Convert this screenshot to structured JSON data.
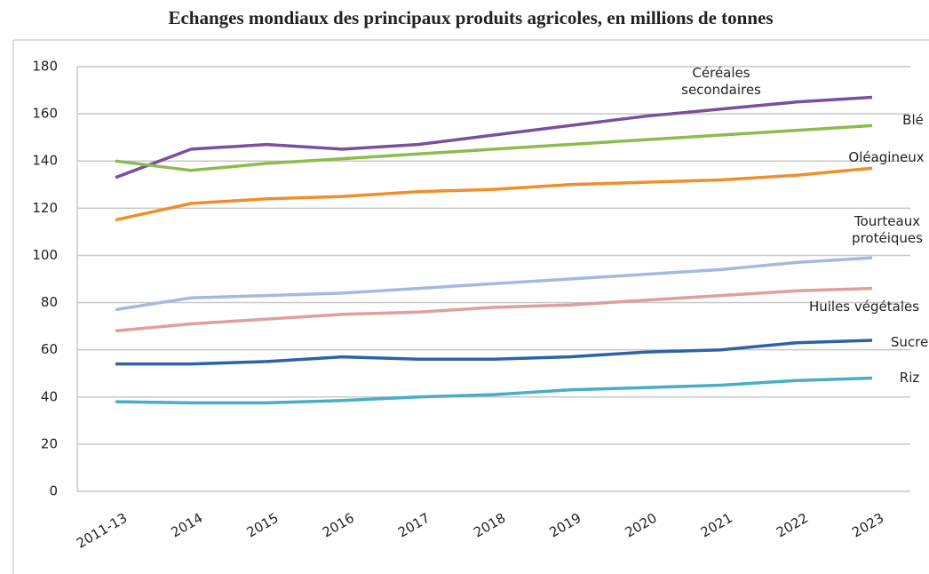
{
  "chart_data": {
    "type": "line",
    "title": "Echanges mondiaux des principaux produits agricoles, en millions de tonnes",
    "categories": [
      "2011-13",
      "2014",
      "2015",
      "2016",
      "2017",
      "2018",
      "2019",
      "2020",
      "2021",
      "2022",
      "2023"
    ],
    "series": [
      {
        "name": "Céréales secondaires",
        "color": "#7b4f9e",
        "values": [
          133,
          145,
          147,
          145,
          147,
          151,
          155,
          159,
          162,
          165,
          167
        ]
      },
      {
        "name": "Blé",
        "color": "#8cbb4e",
        "values": [
          140,
          136,
          139,
          141,
          143,
          145,
          147,
          149,
          151,
          153,
          155
        ]
      },
      {
        "name": "Oléagineux",
        "color": "#f08e2a",
        "values": [
          115,
          122,
          124,
          125,
          127,
          128,
          130,
          131,
          132,
          134,
          137
        ]
      },
      {
        "name": "Tourteaux protéiques",
        "color": "#a3badf",
        "values": [
          77,
          82,
          83,
          84,
          86,
          88,
          90,
          92,
          94,
          97,
          99
        ]
      },
      {
        "name": "Huiles végétales",
        "color": "#df9f9c",
        "values": [
          68,
          71,
          73,
          75,
          76,
          78,
          79,
          81,
          83,
          85,
          86
        ]
      },
      {
        "name": "Sucre",
        "color": "#2e62a6",
        "values": [
          54,
          54,
          55,
          57,
          56,
          56,
          57,
          59,
          60,
          63,
          64
        ]
      },
      {
        "name": "Riz",
        "color": "#4aadc6",
        "values": [
          38,
          37.5,
          37.5,
          38.5,
          40,
          41,
          43,
          44,
          45,
          47,
          48
        ]
      }
    ],
    "ylim": [
      0,
      180
    ],
    "yticks": [
      0,
      20,
      40,
      60,
      80,
      100,
      120,
      140,
      160,
      180
    ],
    "grid": true
  }
}
